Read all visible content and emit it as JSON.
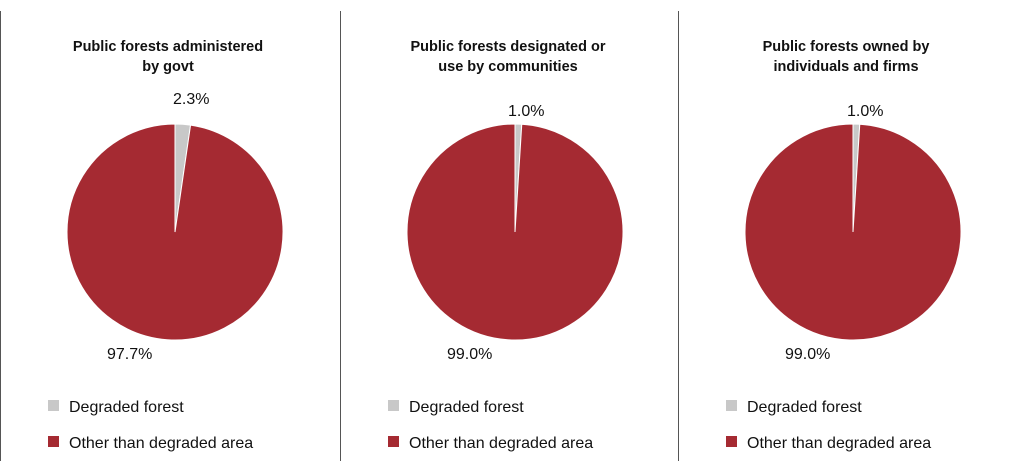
{
  "chart_data": [
    {
      "type": "pie",
      "title": [
        "Public forests administered",
        "by govt"
      ],
      "slices": [
        {
          "label": "Degraded forest",
          "value": 2.3,
          "display": "2.3%",
          "color": "#c8c8c8"
        },
        {
          "label": "Other than degraded area",
          "value": 97.7,
          "display": "97.7%",
          "color": "#a52a32"
        }
      ],
      "legend_position": "bottom"
    },
    {
      "type": "pie",
      "title": [
        "Public forests designated or",
        "use by communities"
      ],
      "slices": [
        {
          "label": "Degraded forest",
          "value": 1.0,
          "display": "1.0%",
          "color": "#c8c8c8"
        },
        {
          "label": "Other than degraded area",
          "value": 99.0,
          "display": "99.0%",
          "color": "#a52a32"
        }
      ],
      "legend_position": "bottom"
    },
    {
      "type": "pie",
      "title": [
        "Public forests owned by",
        "individuals and firms"
      ],
      "slices": [
        {
          "label": "Degraded forest",
          "value": 1.0,
          "display": "1.0%",
          "color": "#c8c8c8"
        },
        {
          "label": "Other than degraded area",
          "value": 99.0,
          "display": "99.0%",
          "color": "#a52a32"
        }
      ],
      "legend_position": "bottom"
    }
  ]
}
